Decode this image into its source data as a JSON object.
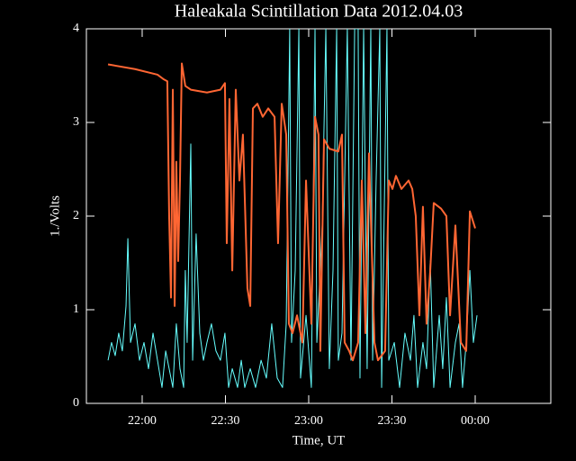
{
  "chart_data": {
    "type": "line",
    "title": "Haleakala Scintillation Data 2012.04.03",
    "x_label": "Time, UT",
    "y_label": "1./Volts",
    "xlim": [
      21.665,
      24.454
    ],
    "ylim": [
      0,
      4
    ],
    "xticks": [
      {
        "value": 22,
        "label": "22:00"
      },
      {
        "value": 22.5,
        "label": "22:30"
      },
      {
        "value": 23,
        "label": "23:00"
      },
      {
        "value": 23.5,
        "label": "23:30"
      },
      {
        "value": 24,
        "label": "00:00"
      }
    ],
    "yticks": [
      0,
      1,
      2,
      3,
      4
    ],
    "series": [
      {
        "color": "#66ffff",
        "x": [
          21.795,
          21.816,
          21.838,
          21.859,
          21.881,
          21.903,
          21.914,
          21.93,
          21.957,
          21.984,
          22.011,
          22.038,
          22.065,
          22.092,
          22.119,
          22.141,
          22.162,
          22.184,
          22.205,
          22.227,
          22.249,
          22.259,
          22.27,
          22.292,
          22.303,
          22.324,
          22.346,
          22.368,
          22.389,
          22.416,
          22.443,
          22.47,
          22.497,
          22.519,
          22.541,
          22.573,
          22.595,
          22.616,
          22.649,
          22.681,
          22.714,
          22.746,
          22.778,
          22.811,
          22.843,
          22.865,
          22.886,
          22.897,
          22.919,
          22.941,
          22.951,
          22.984,
          23.016,
          23.038,
          23.049,
          23.081,
          23.103,
          23.124,
          23.146,
          23.168,
          23.178,
          23.2,
          23.232,
          23.254,
          23.276,
          23.297,
          23.308,
          23.33,
          23.351,
          23.373,
          23.384,
          23.405,
          23.427,
          23.438,
          23.47,
          23.481,
          23.514,
          23.546,
          23.578,
          23.611,
          23.632,
          23.654,
          23.686,
          23.708,
          23.73,
          23.751,
          23.784,
          23.805,
          23.827,
          23.849,
          23.881,
          23.903,
          23.924,
          23.946,
          23.968,
          23.989,
          24.011
        ],
        "values": [
          0.46,
          0.65,
          0.51,
          0.75,
          0.56,
          1.04,
          1.76,
          0.65,
          0.85,
          0.46,
          0.65,
          0.37,
          0.75,
          0.46,
          0.17,
          0.56,
          0.37,
          0.17,
          0.85,
          0.37,
          0.17,
          1.42,
          0.65,
          2.77,
          0.46,
          1.81,
          0.75,
          0.46,
          0.65,
          0.85,
          0.56,
          0.46,
          0.75,
          0.17,
          0.37,
          0.17,
          0.46,
          0.17,
          0.37,
          0.17,
          0.46,
          0.27,
          0.85,
          0.27,
          0.17,
          0.85,
          4,
          0.65,
          1.42,
          4,
          0.27,
          0.94,
          0.17,
          4,
          0.65,
          1.9,
          4,
          0.37,
          1.42,
          4,
          0.46,
          0.75,
          4,
          0.46,
          4,
          4,
          0.27,
          4,
          0.37,
          4,
          0.46,
          2.38,
          4,
          0.17,
          4,
          0.46,
          0.65,
          0.17,
          0.75,
          0.46,
          0.94,
          0.17,
          0.65,
          0.37,
          1.52,
          0.17,
          0.94,
          0.37,
          1.13,
          0.17,
          0.65,
          0.85,
          0.17,
          0.65,
          1.42,
          0.65,
          0.94
        ]
      },
      {
        "color": "#ff6633",
        "x": [
          21.795,
          21.957,
          22.092,
          22.13,
          22.151,
          22.162,
          22.173,
          22.184,
          22.195,
          22.205,
          22.216,
          22.227,
          22.238,
          22.259,
          22.292,
          22.389,
          22.47,
          22.497,
          22.508,
          22.524,
          22.541,
          22.562,
          22.584,
          22.605,
          22.632,
          22.649,
          22.665,
          22.692,
          22.724,
          22.757,
          22.795,
          22.816,
          22.838,
          22.865,
          22.881,
          22.903,
          22.93,
          22.962,
          22.984,
          23.016,
          23.038,
          23.059,
          23.07,
          23.092,
          23.124,
          23.178,
          23.2,
          23.216,
          23.243,
          23.265,
          23.297,
          23.319,
          23.341,
          23.362,
          23.395,
          23.416,
          23.459,
          23.481,
          23.503,
          23.524,
          23.557,
          23.6,
          23.622,
          23.643,
          23.665,
          23.686,
          23.708,
          23.73,
          23.751,
          23.795,
          23.827,
          23.849,
          23.881,
          23.914,
          23.946,
          23.968,
          24.0
        ],
        "values": [
          3.62,
          3.57,
          3.51,
          3.46,
          3.44,
          2.0,
          1.13,
          3.35,
          1.04,
          2.58,
          1.52,
          2.38,
          3.63,
          3.39,
          3.35,
          3.32,
          3.35,
          3.42,
          1.71,
          3.25,
          1.42,
          3.35,
          2.38,
          2.87,
          1.23,
          1.04,
          3.15,
          3.2,
          3.06,
          3.15,
          3.06,
          1.71,
          3.2,
          2.87,
          0.85,
          0.75,
          0.94,
          0.65,
          2.38,
          0.85,
          3.06,
          2.87,
          0.56,
          2.82,
          2.72,
          2.69,
          2.87,
          0.65,
          0.56,
          0.46,
          0.65,
          2.38,
          0.75,
          2.67,
          0.65,
          0.46,
          0.56,
          2.38,
          2.29,
          2.43,
          2.29,
          2.38,
          2.29,
          2.0,
          0.94,
          2.1,
          0.85,
          1.42,
          2.14,
          2.08,
          2.0,
          0.94,
          1.9,
          0.65,
          0.56,
          2.05,
          1.87
        ]
      }
    ]
  }
}
